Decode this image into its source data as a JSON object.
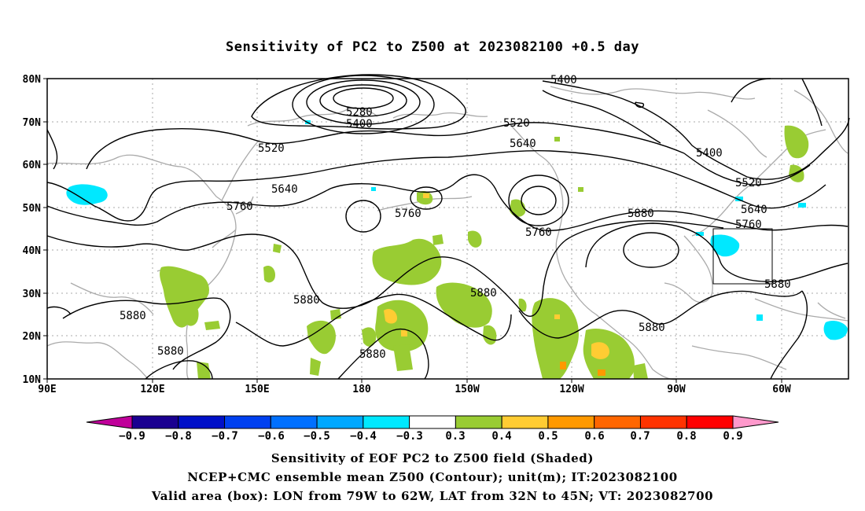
{
  "title": "Sensitivity of PC2 to Z500 at 2023082100 +0.5 day",
  "axes": {
    "lat_labels": [
      "80N",
      "70N",
      "60N",
      "50N",
      "40N",
      "30N",
      "20N",
      "10N"
    ],
    "lon_labels": [
      "90E",
      "120E",
      "150E",
      "180",
      "150W",
      "120W",
      "90W",
      "60W"
    ]
  },
  "contour_labels": [
    {
      "text": "5400",
      "key": "c1"
    },
    {
      "text": "5280",
      "key": "c2"
    },
    {
      "text": "5400",
      "key": "c3"
    },
    {
      "text": "5520",
      "key": "c4"
    },
    {
      "text": "5520",
      "key": "c5"
    },
    {
      "text": "5640",
      "key": "c6"
    },
    {
      "text": "5640",
      "key": "c7"
    },
    {
      "text": "5760",
      "key": "c8"
    },
    {
      "text": "5760",
      "key": "c9"
    },
    {
      "text": "5760",
      "key": "c10"
    },
    {
      "text": "5880",
      "key": "c11"
    },
    {
      "text": "5400",
      "key": "c12"
    },
    {
      "text": "5520",
      "key": "c13"
    },
    {
      "text": "5640",
      "key": "c14"
    },
    {
      "text": "5760",
      "key": "c15"
    },
    {
      "text": "5880",
      "key": "c16"
    },
    {
      "text": "5880",
      "key": "c17"
    },
    {
      "text": "5880",
      "key": "c18"
    },
    {
      "text": "5880",
      "key": "c19"
    },
    {
      "text": "5880",
      "key": "c20"
    },
    {
      "text": "5880",
      "key": "c21"
    },
    {
      "text": "5880",
      "key": "c22"
    }
  ],
  "colorbar": {
    "colors": [
      "#1a0090",
      "#0010c8",
      "#0040f0",
      "#0070ff",
      "#00a8ff",
      "#00e8ff",
      "#ffffff",
      "#99cc33",
      "#ffcc33",
      "#ff9900",
      "#ff6600",
      "#ff3300",
      "#ff0000"
    ],
    "left_arrow_color": "#c0009a",
    "right_arrow_color": "#ff99cc",
    "labels": [
      "−0.9",
      "−0.8",
      "−0.7",
      "−0.6",
      "−0.5",
      "−0.4",
      "−0.3",
      "0.3",
      "0.4",
      "0.5",
      "0.6",
      "0.7",
      "0.8",
      "0.9"
    ]
  },
  "footer": {
    "line1": "Sensitivity of EOF PC2 to Z500 field (Shaded)",
    "line2": "NCEP+CMC ensemble mean Z500 (Contour); unit(m); IT:2023082100",
    "line3": "Valid area (box): LON from 79W to 62W, LAT from 32N to 45N; VT: 2023082700"
  },
  "shading_colors": {
    "green": "#99cc33",
    "yellow": "#ffcc33",
    "orange": "#ff9900",
    "cyan": "#00e8ff",
    "coast": "#aaaaaa"
  }
}
